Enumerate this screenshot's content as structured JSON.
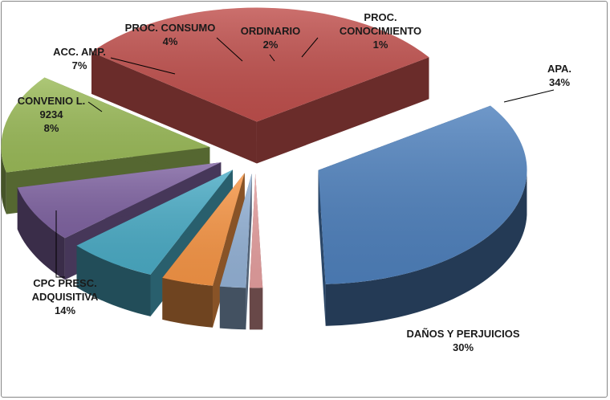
{
  "chart_data": {
    "type": "pie",
    "style": "3d-exploded",
    "title": "",
    "legend": "none",
    "slices": [
      {
        "label_lines": [
          "APA."
        ],
        "percent_label": "34%",
        "value": 34,
        "color": "#4F81BD"
      },
      {
        "label_lines": [
          "DAÑOS Y PERJUICIOS"
        ],
        "percent_label": "30%",
        "value": 30,
        "color": "#C0504D"
      },
      {
        "label_lines": [
          "CPC PRESC.",
          "ADQUISITIVA"
        ],
        "percent_label": "14%",
        "value": 14,
        "color": "#9BBB59"
      },
      {
        "label_lines": [
          "CONVENIO L.",
          "9234"
        ],
        "percent_label": "8%",
        "value": 8,
        "color": "#8064A2"
      },
      {
        "label_lines": [
          "ACC. AMP."
        ],
        "percent_label": "7%",
        "value": 7,
        "color": "#4BACC6"
      },
      {
        "label_lines": [
          "PROC. CONSUMO"
        ],
        "percent_label": "4%",
        "value": 4,
        "color": "#F79646"
      },
      {
        "label_lines": [
          "ORDINARIO"
        ],
        "percent_label": "2%",
        "value": 2,
        "color": "#95B3D7"
      },
      {
        "label_lines": [
          "PROC.",
          "CONOCIMIENTO"
        ],
        "percent_label": "1%",
        "value": 1,
        "color": "#E6A0A0"
      }
    ]
  }
}
